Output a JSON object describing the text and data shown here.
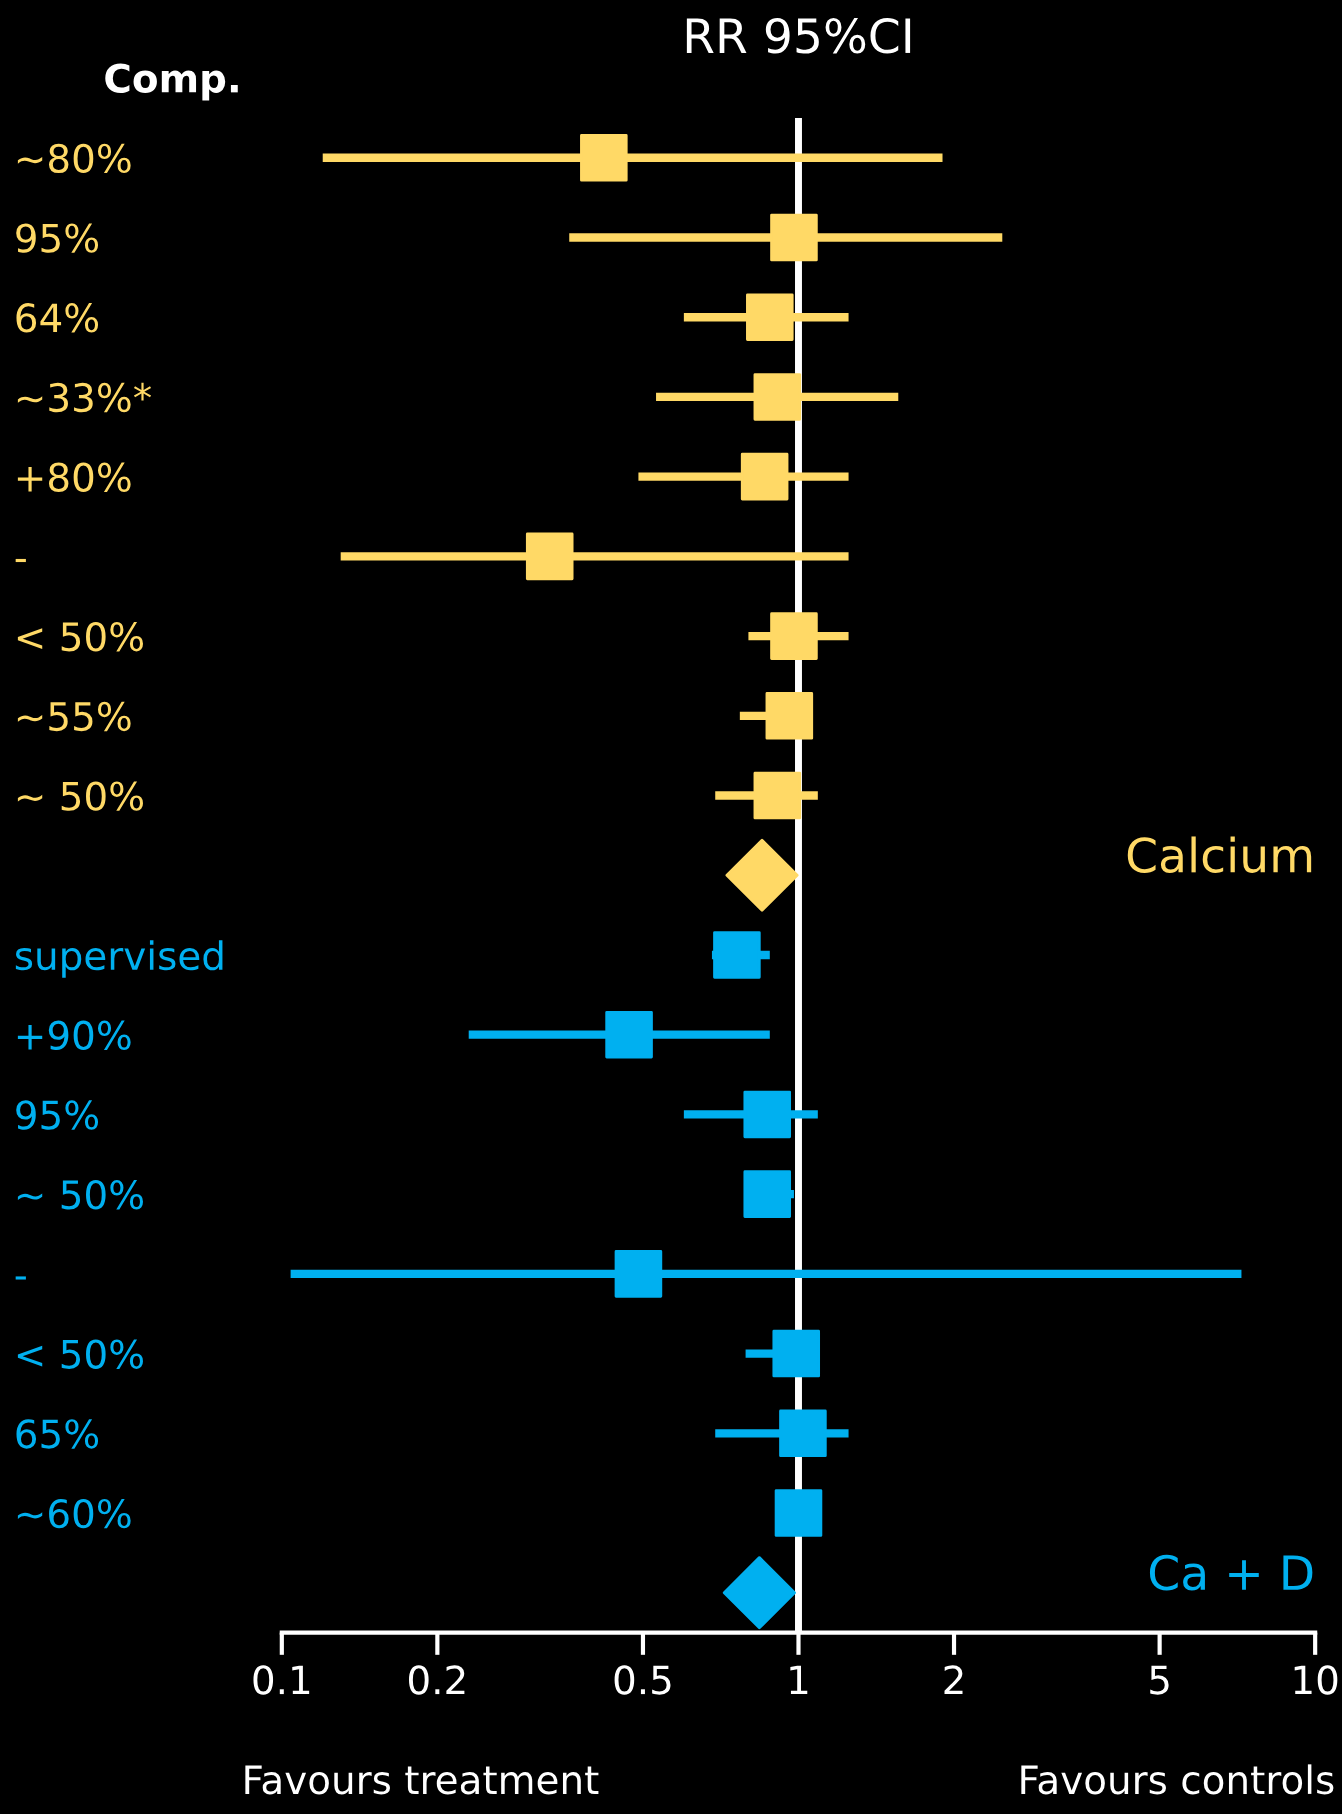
{
  "chart_data": {
    "type": "scatter",
    "orientation": "horizontal",
    "title": "RR 95%CI",
    "categories": [
      "~80%",
      "95%",
      "64%",
      "~33%*",
      "+80%",
      "-",
      "< 50%",
      "~55%",
      "~ 50%",
      null,
      "supervised",
      "+90%",
      "95%",
      "~ 50%",
      "-",
      "< 50%",
      "65%",
      "~60%",
      null
    ],
    "series": [
      {
        "name": "Calcium",
        "color": "#ffd966",
        "marker": "square",
        "values": [
          0.42,
          0.98,
          0.88,
          0.91,
          0.86,
          0.33,
          0.98,
          0.96,
          0.91,
          null,
          null,
          null,
          null,
          null,
          null,
          null,
          null,
          null,
          null
        ],
        "errors": [
          [
            0.12,
            1.9
          ],
          [
            0.36,
            2.48
          ],
          [
            0.6,
            1.25
          ],
          [
            0.53,
            1.56
          ],
          [
            0.49,
            1.25
          ],
          [
            0.13,
            1.25
          ],
          [
            0.8,
            1.25
          ],
          [
            0.77,
            1.05
          ],
          [
            0.69,
            1.09
          ],
          null,
          null,
          null,
          null,
          null,
          null,
          null,
          null,
          null,
          null
        ]
      },
      {
        "color": "#ffd966",
        "marker": "diamond",
        "values": [
          null,
          null,
          null,
          null,
          null,
          null,
          null,
          null,
          null,
          0.85,
          null,
          null,
          null,
          null,
          null,
          null,
          null,
          null,
          null
        ]
      },
      {
        "name": "Ca + D",
        "color": "#00b0f0",
        "marker": "square",
        "values": [
          null,
          null,
          null,
          null,
          null,
          null,
          null,
          null,
          null,
          null,
          0.76,
          0.47,
          0.87,
          0.87,
          0.49,
          0.99,
          1.02,
          1.0,
          null
        ],
        "errors": [
          null,
          null,
          null,
          null,
          null,
          null,
          null,
          null,
          null,
          null,
          [
            0.68,
            0.88
          ],
          [
            0.23,
            0.88
          ],
          [
            0.6,
            1.09
          ],
          [
            0.79,
            0.98
          ],
          [
            0.104,
            7.2
          ],
          [
            0.79,
            0.99
          ],
          [
            0.69,
            1.25
          ],
          null,
          null
        ]
      },
      {
        "color": "#00b0f0",
        "marker": "diamond",
        "values": [
          null,
          null,
          null,
          null,
          null,
          null,
          null,
          null,
          null,
          null,
          null,
          null,
          null,
          null,
          null,
          null,
          null,
          null,
          0.84
        ]
      }
    ],
    "xlim": [
      0.1,
      10
    ],
    "xticks": [
      0.1,
      0.2,
      0.5,
      1,
      2,
      5,
      10
    ],
    "log": "x",
    "grid": false,
    "ref_lines": [
      {
        "axis": "x",
        "value": 1,
        "color": "#ffffff"
      }
    ],
    "annotations": [
      "Comp.",
      "Favours treatment",
      "Favours controls"
    ]
  }
}
